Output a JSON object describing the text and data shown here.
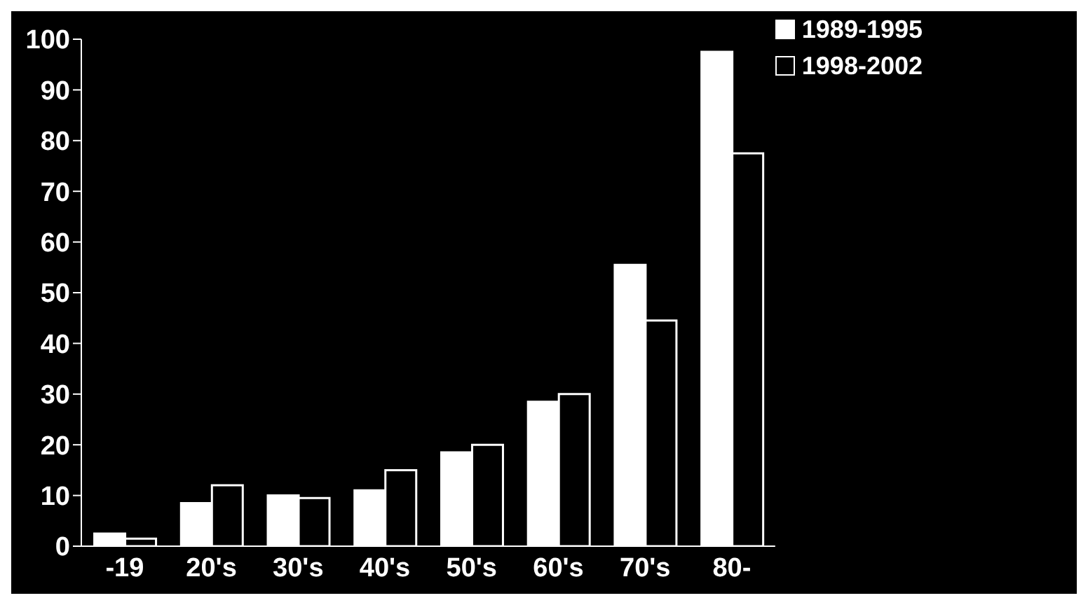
{
  "chart_data": {
    "type": "bar",
    "categories": [
      "-19",
      "20's",
      "30's",
      "40's",
      "50's",
      "60's",
      "70's",
      "80-"
    ],
    "series": [
      {
        "name": "1989-1995",
        "color": "#ffffff",
        "values": [
          2.5,
          8.5,
          10,
          11,
          18.5,
          28.5,
          55.5,
          97.5
        ]
      },
      {
        "name": "1998-2002",
        "color": "#000000",
        "values": [
          1.5,
          12,
          9.5,
          15,
          20,
          30,
          44.5,
          77.5
        ]
      }
    ],
    "ylim": [
      0,
      100
    ],
    "yticks": [
      0,
      10,
      20,
      30,
      40,
      50,
      60,
      70,
      80,
      90,
      100
    ],
    "grid": false,
    "legend": "top right"
  }
}
